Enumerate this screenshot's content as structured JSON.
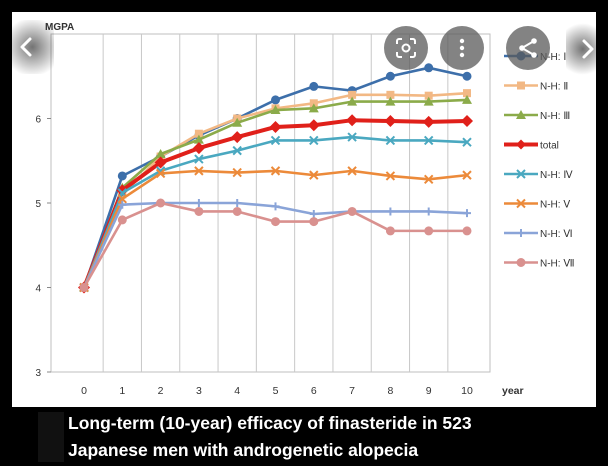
{
  "chart_data": {
    "type": "line",
    "title": "",
    "ylabel": "MGPA",
    "xlabel": "year",
    "x": [
      0,
      1,
      2,
      3,
      4,
      5,
      6,
      7,
      8,
      9,
      10
    ],
    "x_ticks": [
      "0",
      "1",
      "2",
      "3",
      "4",
      "5",
      "6",
      "7",
      "8",
      "9",
      "10"
    ],
    "y_ticks": [
      "3",
      "4",
      "5",
      "6"
    ],
    "ylim": [
      3,
      7
    ],
    "grid": "vertical lines",
    "legend": "right",
    "series": [
      {
        "name": "N-H: Ⅰ",
        "color": "#3d6faa",
        "marker": "circle",
        "values": [
          4.0,
          5.32,
          5.55,
          5.8,
          6.0,
          6.22,
          6.38,
          6.33,
          6.5,
          6.6,
          6.5
        ]
      },
      {
        "name": "N-H: Ⅱ",
        "color": "#f2b884",
        "marker": "square",
        "values": [
          4.0,
          5.1,
          5.55,
          5.82,
          6.0,
          6.12,
          6.18,
          6.28,
          6.28,
          6.27,
          6.3
        ]
      },
      {
        "name": "N-H: Ⅲ",
        "color": "#8bab4a",
        "marker": "triangle",
        "values": [
          4.0,
          5.18,
          5.58,
          5.75,
          5.95,
          6.1,
          6.12,
          6.2,
          6.2,
          6.2,
          6.22
        ]
      },
      {
        "name": "total",
        "color": "#e0201a",
        "marker": "diamond",
        "values": [
          4.0,
          5.15,
          5.48,
          5.65,
          5.78,
          5.9,
          5.92,
          5.98,
          5.97,
          5.96,
          5.97
        ]
      },
      {
        "name": "N-H: Ⅳ",
        "color": "#4aa8c0",
        "marker": "x",
        "values": [
          4.0,
          5.12,
          5.38,
          5.52,
          5.62,
          5.74,
          5.74,
          5.78,
          5.74,
          5.74,
          5.72
        ]
      },
      {
        "name": "N-H: Ⅴ",
        "color": "#ec8a3a",
        "marker": "x",
        "values": [
          4.0,
          5.05,
          5.35,
          5.38,
          5.36,
          5.38,
          5.33,
          5.38,
          5.32,
          5.28,
          5.33
        ]
      },
      {
        "name": "N-H: Ⅵ",
        "color": "#8aa4d8",
        "marker": "plus",
        "values": [
          4.0,
          4.98,
          5.0,
          5.0,
          5.0,
          4.96,
          4.87,
          4.9,
          4.9,
          4.9,
          4.88
        ]
      },
      {
        "name": "N-H: Ⅶ",
        "color": "#d9918f",
        "marker": "circle",
        "values": [
          4.0,
          4.8,
          5.0,
          4.9,
          4.9,
          4.78,
          4.78,
          4.9,
          4.67,
          4.67,
          4.67
        ]
      }
    ]
  },
  "caption": {
    "text": "Long-term (10-year) efficacy of finasteride in 523\nJapanese men with androgenetic alopecia"
  },
  "overlay": {
    "back_icon": "chevron-left-icon",
    "lens_icon": "google-lens-icon",
    "more_icon": "more-vert-icon",
    "share_icon": "share-icon",
    "next_icon": "chevron-right-icon"
  }
}
